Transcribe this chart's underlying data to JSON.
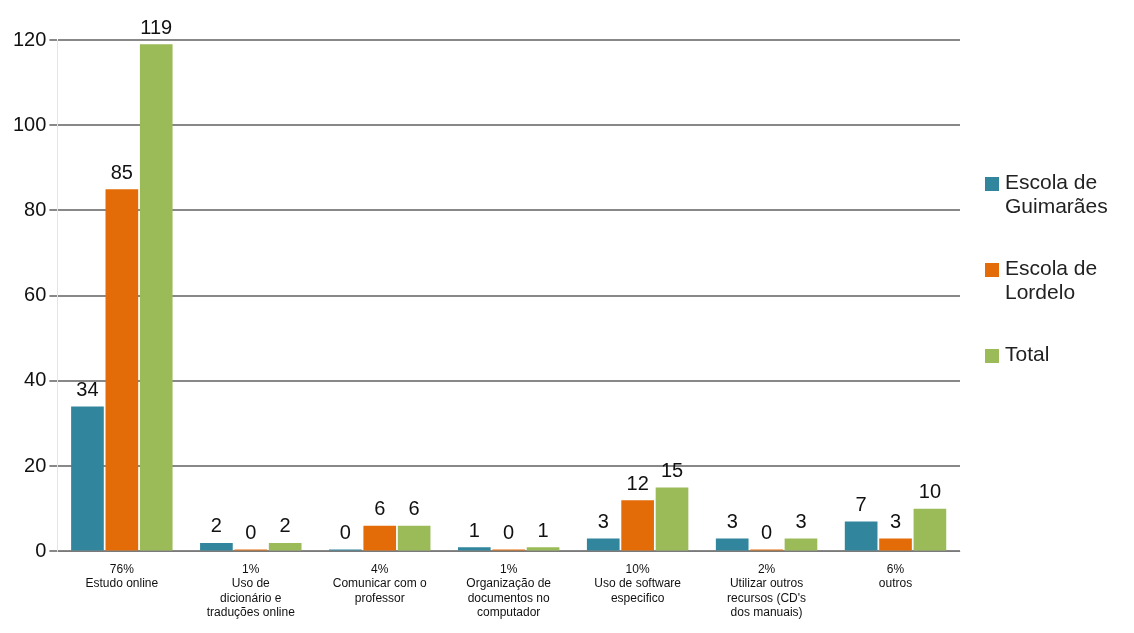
{
  "chart_data": {
    "type": "bar",
    "categories": [
      "76%\nEstudo online",
      "1%\nUso de dicionário e traduções online",
      "4%\nComunicar com o professor",
      "1%\nOrganização de documentos no computador",
      "10%\nUso de software especifico",
      "2%\nUtilizar outros recursos (CD's dos manuais)",
      "6%\noutros"
    ],
    "series": [
      {
        "name": "Escola de Guimarães",
        "color": "#31859c",
        "values": [
          34,
          2,
          0,
          1,
          3,
          3,
          7
        ]
      },
      {
        "name": "Escola de Lordelo",
        "color": "#e36c09",
        "values": [
          85,
          0,
          6,
          0,
          12,
          0,
          3
        ]
      },
      {
        "name": "Total",
        "color": "#9bbb59",
        "values": [
          119,
          2,
          6,
          1,
          15,
          3,
          10
        ]
      }
    ],
    "ylim": [
      0,
      120
    ],
    "yticks": [
      0,
      20,
      40,
      60,
      80,
      100,
      120
    ],
    "grid": "y",
    "legend": "right",
    "data_labels": true
  }
}
